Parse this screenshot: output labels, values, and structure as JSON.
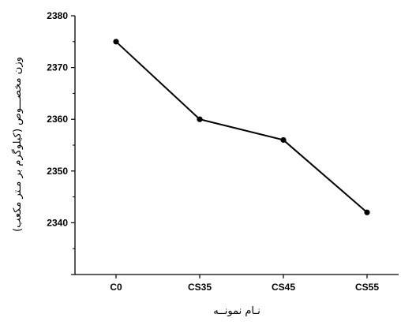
{
  "chart_data": {
    "type": "line",
    "title": "",
    "xlabel": "نـام نمونــه",
    "ylabel": "وزن مخصـــوص (کیلوگرم بر مـتر مکعب)",
    "categories": [
      "C0",
      "CS35",
      "CS45",
      "CS55"
    ],
    "series": [
      {
        "values": [
          2375,
          2360,
          2356,
          2342
        ]
      }
    ],
    "yticks": [
      2340,
      2350,
      2360,
      2370,
      2380
    ],
    "ylim": [
      2330,
      2380
    ],
    "grid": false,
    "legend": "none",
    "colors": {
      "line": "#000000",
      "marker": "#000000",
      "axis": "#000000"
    }
  }
}
